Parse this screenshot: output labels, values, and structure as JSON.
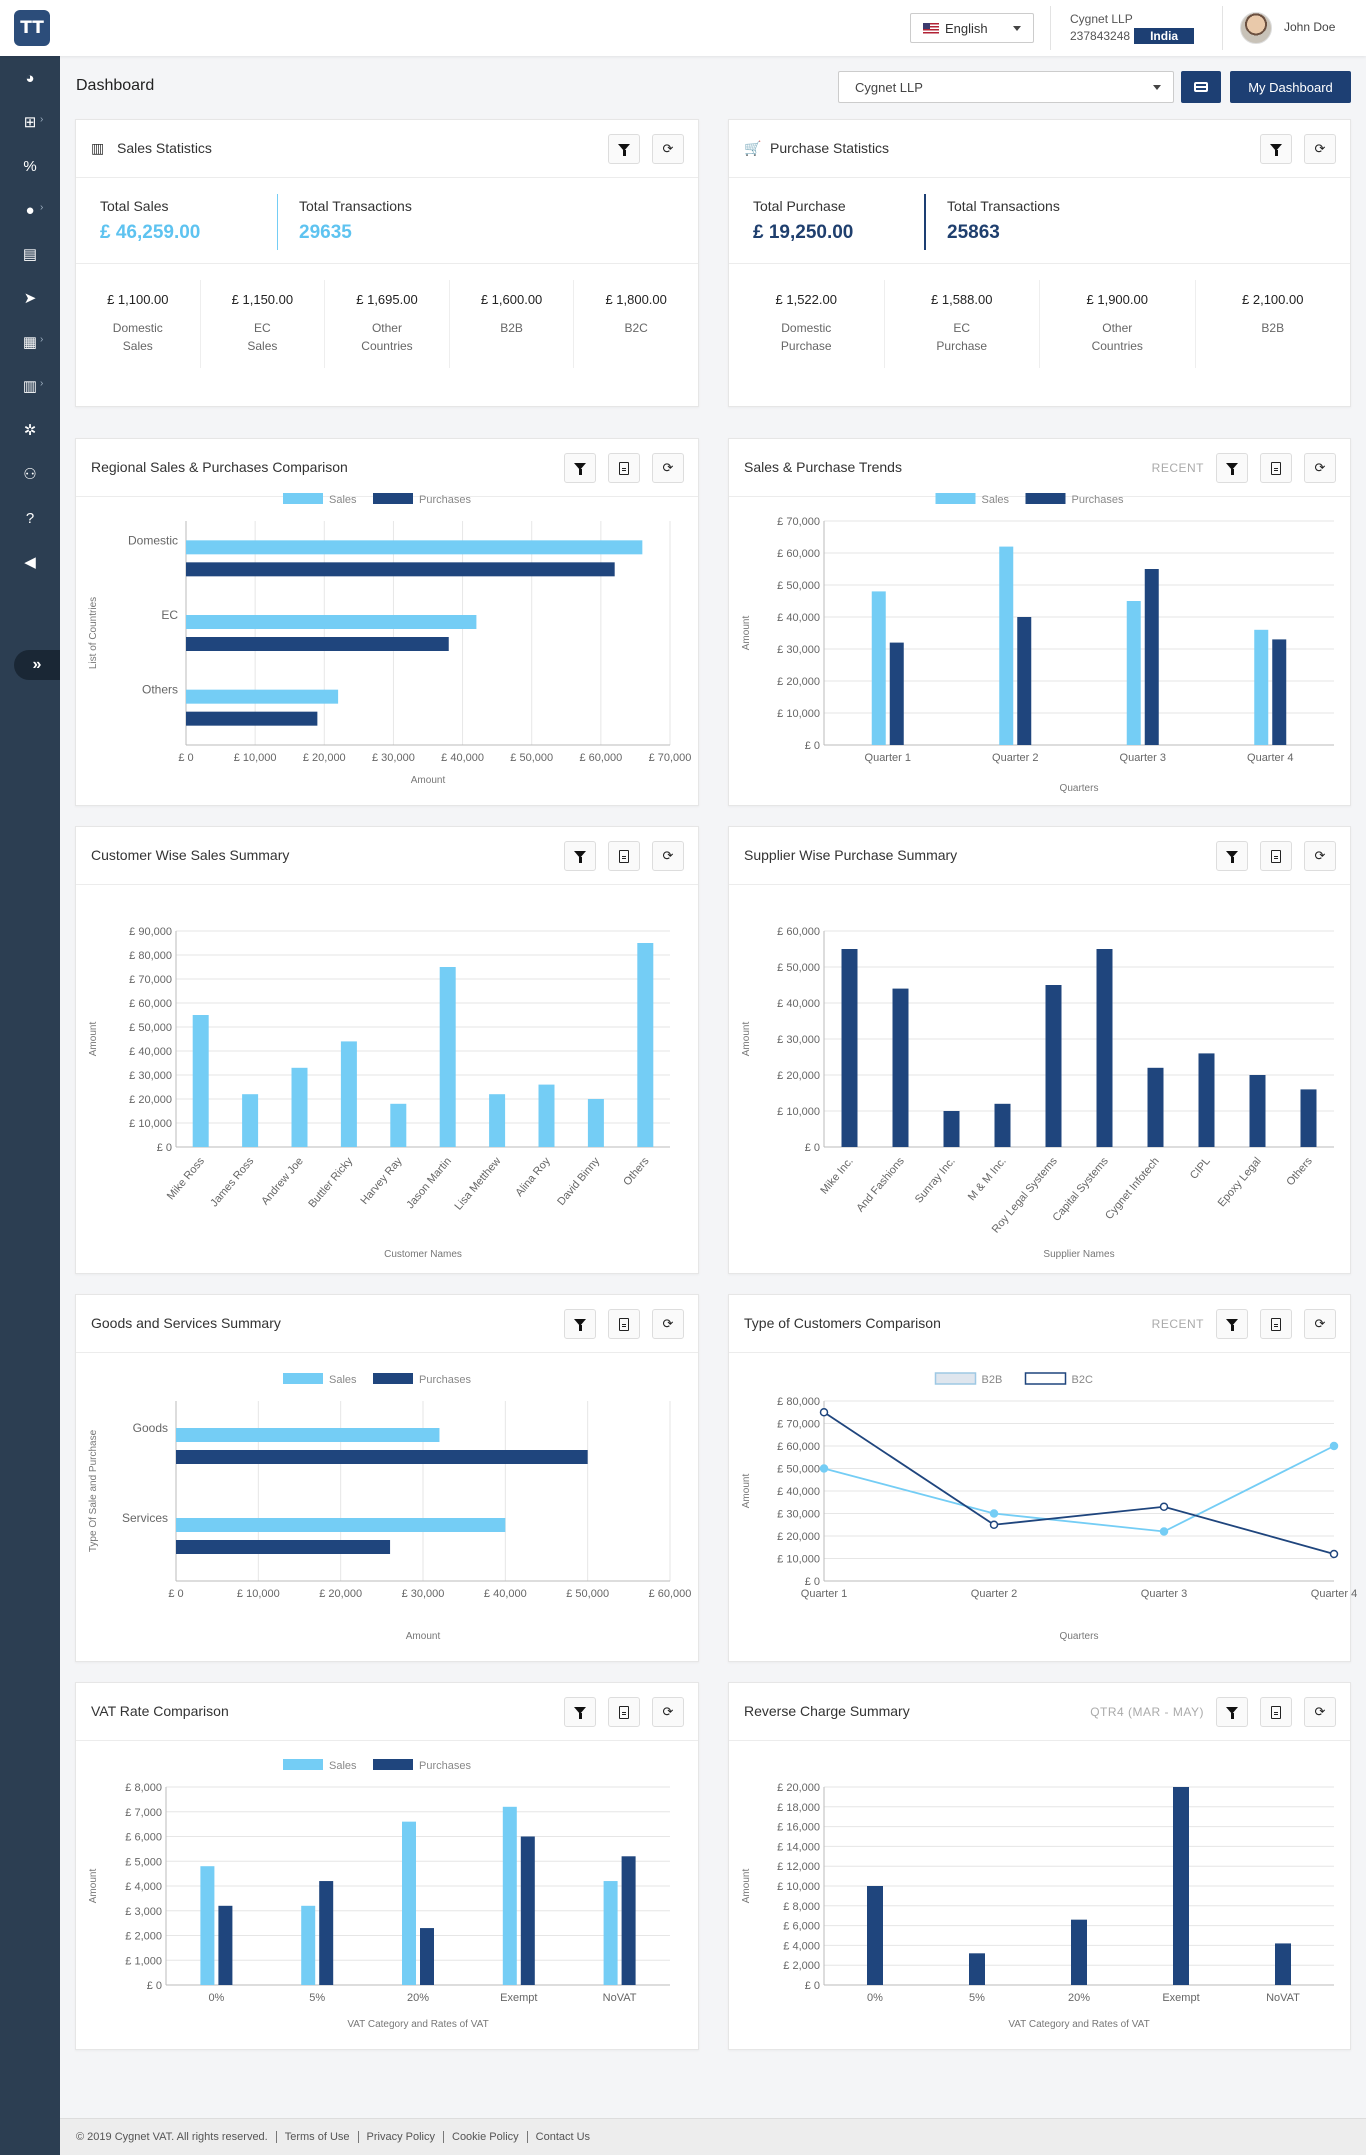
{
  "header": {
    "logo_text": "TT",
    "language": "English",
    "company_name": "Cygnet LLP",
    "company_id": "237843248",
    "country_badge": "India",
    "user_name": "John Doe"
  },
  "sidebar": {
    "icons": [
      "dashboard-icon",
      "sitemap-icon",
      "percent-icon",
      "user-icon",
      "document-icon",
      "send-icon",
      "clipboard-icon",
      "file-icon",
      "gear-icon",
      "users-icon",
      "help-icon",
      "megaphone-icon"
    ],
    "expand_label": "»"
  },
  "toolbar": {
    "page_title": "Dashboard",
    "company_select": "Cygnet LLP",
    "my_dashboard": "My Dashboard"
  },
  "sales_stats": {
    "title": "Sales Statistics",
    "total_sales_label": "Total Sales",
    "total_sales_value": "£ 46,259.00",
    "total_tx_label": "Total Transactions",
    "total_tx_value": "29635",
    "breakdown": [
      {
        "amount": "£ 1,100.00",
        "line1": "Domestic",
        "line2": "Sales"
      },
      {
        "amount": "£ 1,150.00",
        "line1": "EC",
        "line2": "Sales"
      },
      {
        "amount": "£ 1,695.00",
        "line1": "Other",
        "line2": "Countries"
      },
      {
        "amount": "£ 1,600.00",
        "line1": "B2B",
        "line2": ""
      },
      {
        "amount": "£ 1,800.00",
        "line1": "B2C",
        "line2": ""
      }
    ]
  },
  "purchase_stats": {
    "title": "Purchase Statistics",
    "total_purchase_label": "Total Purchase",
    "total_purchase_value": "£ 19,250.00",
    "total_tx_label": "Total Transactions",
    "total_tx_value": "25863",
    "breakdown": [
      {
        "amount": "£ 1,522.00",
        "line1": "Domestic",
        "line2": "Purchase"
      },
      {
        "amount": "£ 1,588.00",
        "line1": "EC",
        "line2": "Purchase"
      },
      {
        "amount": "£ 1,900.00",
        "line1": "Other",
        "line2": "Countries"
      },
      {
        "amount": "£ 2,100.00",
        "line1": "B2B",
        "line2": ""
      }
    ]
  },
  "colors": {
    "sales": "#74cdf5",
    "purchases": "#1f457d",
    "b2b_fill": "#dfe6ee"
  },
  "cards": {
    "regional": {
      "title": "Regional Sales & Purchases Comparison",
      "tag": ""
    },
    "trends": {
      "title": "Sales & Purchase Trends",
      "tag": "RECENT"
    },
    "customer": {
      "title": "Customer Wise Sales Summary",
      "tag": ""
    },
    "supplier": {
      "title": "Supplier Wise Purchase Summary",
      "tag": ""
    },
    "goods": {
      "title": "Goods and Services Summary",
      "tag": ""
    },
    "custtype": {
      "title": "Type of Customers Comparison",
      "tag": "RECENT"
    },
    "vat": {
      "title": "VAT Rate Comparison",
      "tag": ""
    },
    "reverse": {
      "title": "Reverse Charge Summary",
      "tag": "QTR4 (MAR - MAY)"
    }
  },
  "chart_data": [
    {
      "id": "regional",
      "type": "bar",
      "orientation": "horizontal",
      "categories": [
        "Domestic",
        "EC",
        "Others"
      ],
      "series": [
        {
          "name": "Sales",
          "values": [
            66000,
            42000,
            22000
          ]
        },
        {
          "name": "Purchases",
          "values": [
            62000,
            38000,
            19000
          ]
        }
      ],
      "xlabel": "Amount",
      "ylabel": "List of Countries",
      "xlim": [
        0,
        70000
      ],
      "ticks": [
        "£ 0",
        "£ 10,000",
        "£ 20,000",
        "£ 30,000",
        "£ 40,000",
        "£ 50,000",
        "£ 60,000",
        "£ 70,000"
      ],
      "legend": "top",
      "grid": true
    },
    {
      "id": "trends",
      "type": "bar",
      "orientation": "vertical",
      "categories": [
        "Quarter 1",
        "Quarter 2",
        "Quarter 3",
        "Quarter 4"
      ],
      "series": [
        {
          "name": "Sales",
          "values": [
            48000,
            62000,
            45000,
            36000
          ]
        },
        {
          "name": "Purchases",
          "values": [
            32000,
            40000,
            55000,
            33000
          ]
        }
      ],
      "xlabel": "Quarters",
      "ylabel": "Amount",
      "ylim": [
        0,
        70000
      ],
      "ticks": [
        "£ 0",
        "£ 10,000",
        "£ 20,000",
        "£ 30,000",
        "£ 40,000",
        "£ 50,000",
        "£ 60,000",
        "£ 70,000"
      ],
      "legend": "top",
      "grid": true
    },
    {
      "id": "customer",
      "type": "bar",
      "orientation": "vertical",
      "rotate_labels": true,
      "categories": [
        "Mike Ross",
        "James Ross",
        "Andrew Joe",
        "Buttler Ricky",
        "Harvey Ray",
        "Jason Martin",
        "Lisa Metthew",
        "Alina Roy",
        "David Binny",
        "Others"
      ],
      "series": [
        {
          "name": "Sales",
          "values": [
            55000,
            22000,
            33000,
            44000,
            18000,
            75000,
            22000,
            26000,
            20000,
            85000
          ]
        }
      ],
      "xlabel": "Customer Names",
      "ylabel": "Amount",
      "ylim": [
        0,
        90000
      ],
      "ticks": [
        "£ 0",
        "£ 10,000",
        "£ 20,000",
        "£ 30,000",
        "£ 40,000",
        "£ 50,000",
        "£ 60,000",
        "£ 70,000",
        "£ 80,000",
        "£ 90,000"
      ],
      "legend": "none",
      "grid": true
    },
    {
      "id": "supplier",
      "type": "bar",
      "orientation": "vertical",
      "rotate_labels": true,
      "categories": [
        "Mike Inc.",
        "And Fashions",
        "Sunray Inc.",
        "M & M Inc.",
        "Roy Legal Systems",
        "Capital Systems",
        "Cygnet Infotech",
        "CIPL",
        "Epoxy Legal",
        "Others"
      ],
      "series": [
        {
          "name": "Purchases",
          "values": [
            55000,
            44000,
            10000,
            12000,
            45000,
            55000,
            22000,
            26000,
            20000,
            16000
          ]
        }
      ],
      "xlabel": "Supplier Names",
      "ylabel": "Amount",
      "ylim": [
        0,
        60000
      ],
      "ticks": [
        "£ 0",
        "£ 10,000",
        "£ 20,000",
        "£ 30,000",
        "£ 40,000",
        "£ 50,000",
        "£ 60,000"
      ],
      "legend": "none",
      "grid": true
    },
    {
      "id": "goods",
      "type": "bar",
      "orientation": "horizontal",
      "categories": [
        "Goods",
        "Services"
      ],
      "series": [
        {
          "name": "Sales",
          "values": [
            32000,
            40000
          ]
        },
        {
          "name": "Purchases",
          "values": [
            50000,
            26000
          ]
        }
      ],
      "xlabel": "Amount",
      "ylabel": "Type Of Sale and Purchase",
      "xlim": [
        0,
        60000
      ],
      "ticks": [
        "£ 0",
        "£ 10,000",
        "£ 20,000",
        "£ 30,000",
        "£ 40,000",
        "£ 50,000",
        "£ 60,000"
      ],
      "legend": "top",
      "grid": true
    },
    {
      "id": "custtype",
      "type": "line",
      "categories": [
        "Quarter 1",
        "Quarter 2",
        "Quarter 3",
        "Quarter 4"
      ],
      "series": [
        {
          "name": "B2B",
          "values": [
            50000,
            30000,
            22000,
            60000
          ]
        },
        {
          "name": "B2C",
          "values": [
            75000,
            25000,
            33000,
            12000
          ]
        }
      ],
      "xlabel": "Quarters",
      "ylabel": "Amount",
      "ylim": [
        0,
        80000
      ],
      "ticks": [
        "£ 0",
        "£ 10,000",
        "£ 20,000",
        "£ 30,000",
        "£ 40,000",
        "£ 50,000",
        "£ 60,000",
        "£ 70,000",
        "£ 80,000"
      ],
      "legend": "top",
      "grid": true
    },
    {
      "id": "vat",
      "type": "bar",
      "orientation": "vertical",
      "categories": [
        "0%",
        "5%",
        "20%",
        "Exempt",
        "NoVAT"
      ],
      "series": [
        {
          "name": "Sales",
          "values": [
            4800,
            3200,
            6600,
            7200,
            4200
          ]
        },
        {
          "name": "Purchases",
          "values": [
            3200,
            4200,
            2300,
            6000,
            5200
          ]
        }
      ],
      "xlabel": "VAT Category and Rates of VAT",
      "ylabel": "Amount",
      "ylim": [
        0,
        8000
      ],
      "ticks": [
        "£ 0",
        "£ 1,000",
        "£ 2,000",
        "£ 3,000",
        "£ 4,000",
        "£ 5,000",
        "£ 6,000",
        "£ 7,000",
        "£ 8,000"
      ],
      "legend": "top",
      "grid": true
    },
    {
      "id": "reverse",
      "type": "bar",
      "orientation": "vertical",
      "categories": [
        "0%",
        "5%",
        "20%",
        "Exempt",
        "NoVAT"
      ],
      "series": [
        {
          "name": "Purchases",
          "values": [
            10000,
            3200,
            6600,
            20000,
            4200
          ]
        }
      ],
      "xlabel": "VAT Category and Rates of VAT",
      "ylabel": "Amount",
      "ylim": [
        0,
        20000
      ],
      "ticks": [
        "£ 0",
        "£ 2,000",
        "£ 4,000",
        "£ 6,000",
        "£ 8,000",
        "£ 10,000",
        "£ 12,000",
        "£ 14,000",
        "£ 16,000",
        "£ 18,000",
        "£ 20,000"
      ],
      "legend": "none",
      "grid": true
    }
  ],
  "footer": {
    "copyright": "© 2019 Cygnet VAT. All rights reserved.",
    "links": [
      "Terms of Use",
      "Privacy Policy",
      "Cookie Policy",
      "Contact Us"
    ]
  }
}
